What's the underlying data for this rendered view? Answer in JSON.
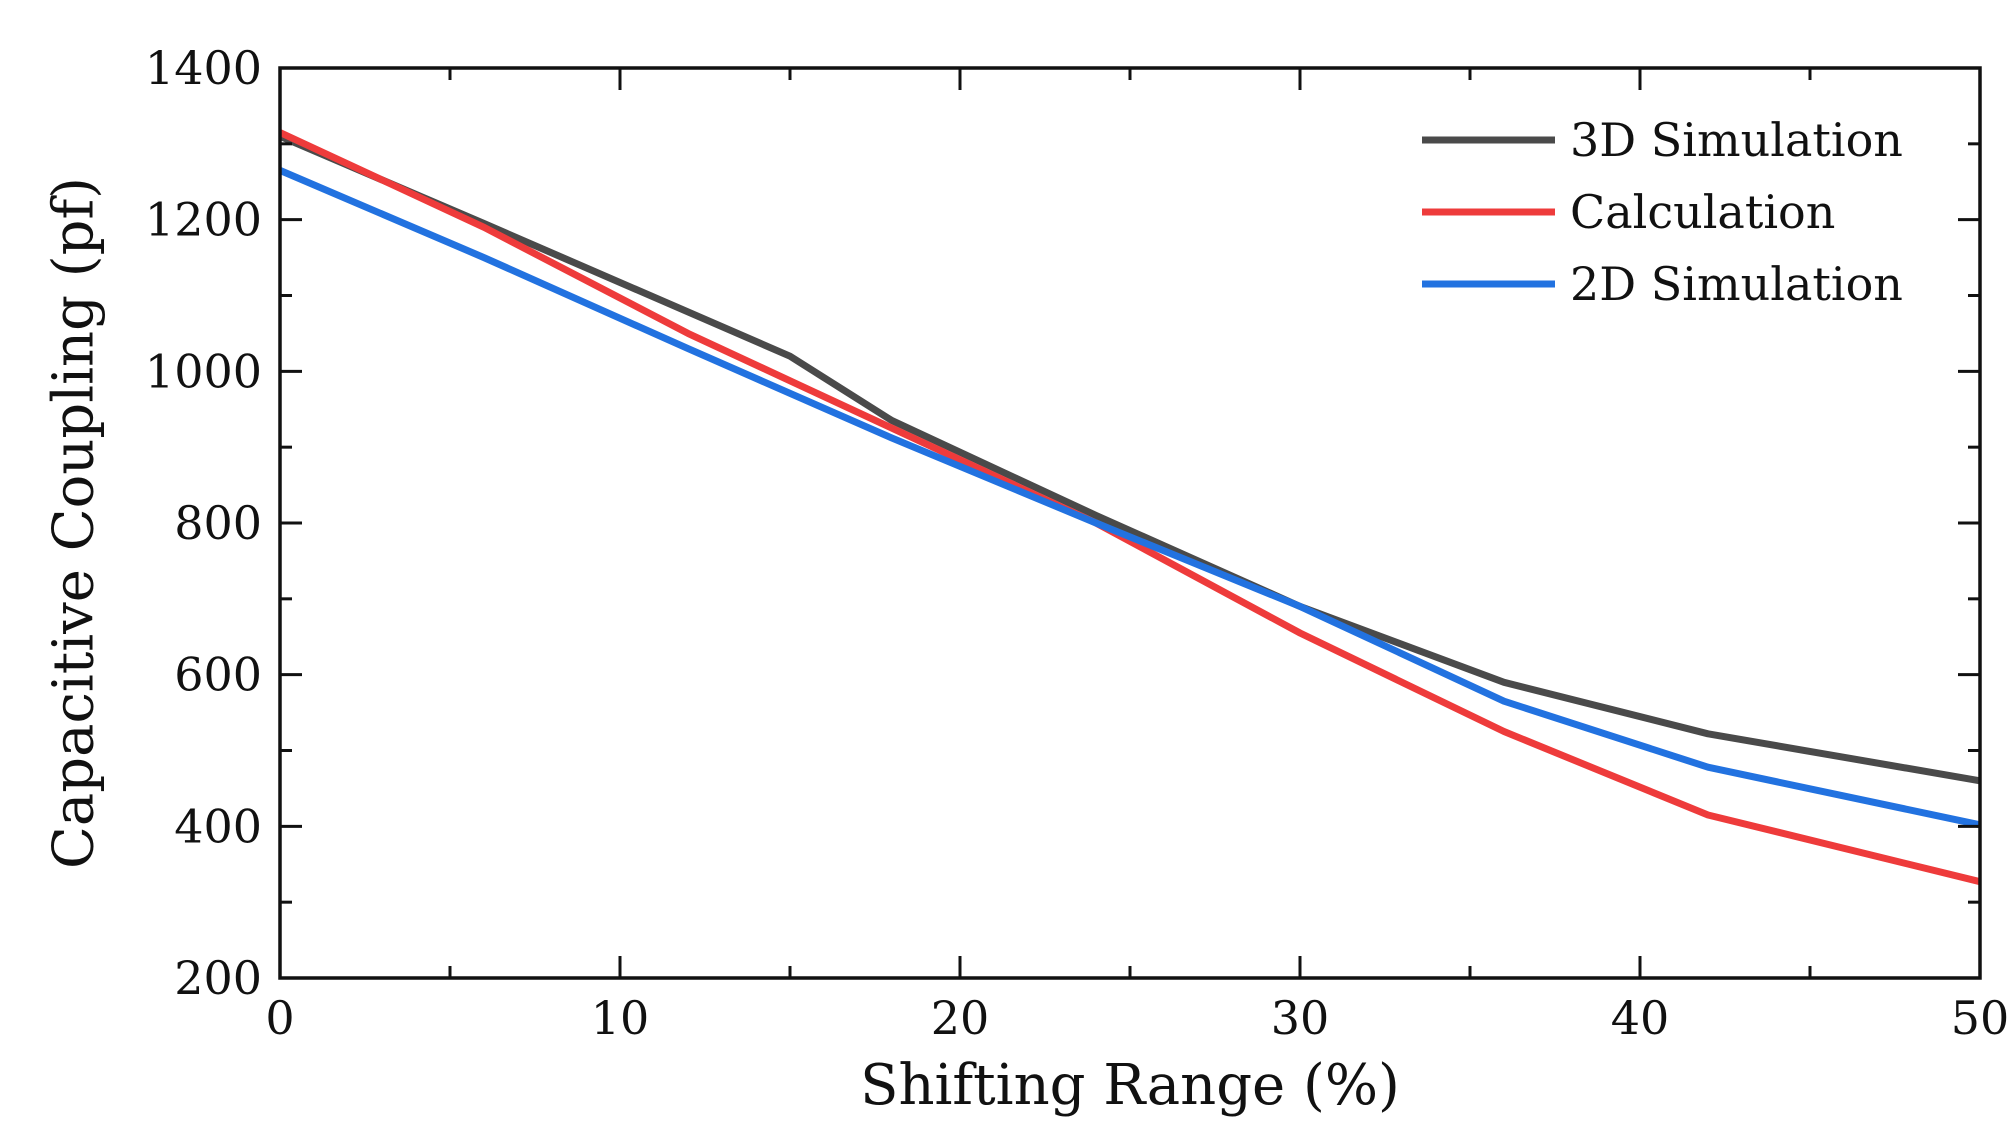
{
  "chart_data": {
    "type": "line",
    "title": "",
    "xlabel": "Shifting Range (%)",
    "ylabel": "Capacitive Coupling (pf)",
    "xlim": [
      0,
      50
    ],
    "ylim": [
      200,
      1400
    ],
    "xticks": [
      0,
      10,
      20,
      30,
      40,
      50
    ],
    "yticks": [
      200,
      400,
      600,
      800,
      1000,
      1200,
      1400
    ],
    "xtick_labels": [
      "0",
      "10",
      "20",
      "30",
      "40",
      "50"
    ],
    "ytick_labels": [
      "200",
      "400",
      "600",
      "800",
      "1000",
      "1200",
      "1400"
    ],
    "x_minor_step": 5,
    "y_minor_step": 100,
    "grid": false,
    "legend_position": "top-right",
    "series": [
      {
        "name": "3D Simulation",
        "color": "#4a4a4a",
        "x": [
          0,
          6,
          15,
          18,
          24,
          30,
          36,
          42,
          50
        ],
        "values": [
          1310,
          1195,
          1020,
          935,
          810,
          690,
          590,
          522,
          460
        ]
      },
      {
        "name": "Calculation",
        "color": "#ee3b3b",
        "x": [
          0,
          6,
          12,
          18,
          24,
          30,
          36,
          42,
          50
        ],
        "values": [
          1315,
          1190,
          1050,
          925,
          800,
          655,
          525,
          415,
          327
        ]
      },
      {
        "name": "2D Simulation",
        "color": "#2272e0",
        "x": [
          0,
          6,
          12,
          18,
          24,
          30,
          36,
          42,
          50
        ],
        "values": [
          1265,
          1150,
          1030,
          912,
          800,
          690,
          565,
          478,
          402
        ]
      }
    ]
  }
}
